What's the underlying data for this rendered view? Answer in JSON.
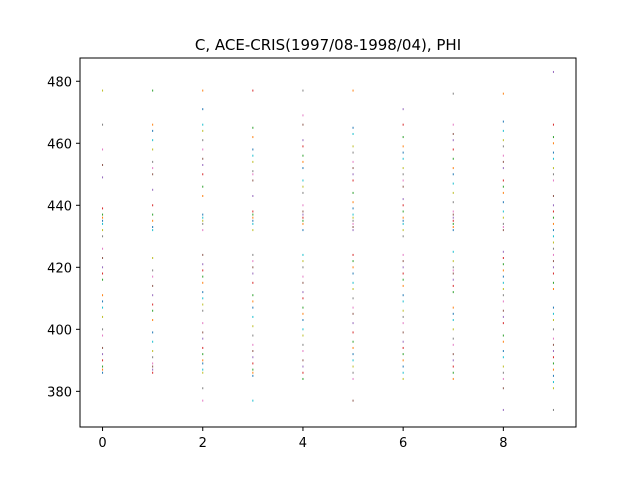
{
  "chart_data": {
    "type": "scatter",
    "title": "C, ACE-CRIS(1997/08-1998/04), PHI",
    "xlabel": "",
    "ylabel": "",
    "xlim": [
      -0.45,
      9.45
    ],
    "ylim": [
      368.5,
      487.5
    ],
    "xticks": [
      0,
      2,
      4,
      6,
      8
    ],
    "yticks": [
      380,
      400,
      420,
      440,
      460,
      480
    ],
    "grid": false,
    "point_colors": [
      "#1f77b4",
      "#ff7f0e",
      "#2ca02c",
      "#d62728",
      "#9467bd",
      "#8c564b",
      "#e377c2",
      "#7f7f7f",
      "#bcbd22",
      "#17becf"
    ],
    "points": [
      {
        "x": 0,
        "ys": [
          386,
          387,
          388,
          390,
          392,
          394,
          398,
          400,
          404,
          407,
          409,
          411,
          416,
          418,
          420,
          423,
          426,
          430,
          432,
          434,
          435,
          436,
          437,
          439,
          449,
          453,
          458,
          466,
          477
        ]
      },
      {
        "x": 1,
        "ys": [
          386,
          387,
          388,
          389,
          391,
          393,
          396,
          399,
          403,
          406,
          408,
          411,
          414,
          417,
          419,
          423,
          432,
          433,
          435,
          437,
          440,
          445,
          450,
          452,
          454,
          458,
          461,
          464,
          466,
          477
        ]
      },
      {
        "x": 2,
        "ys": [
          377,
          381,
          386,
          387,
          389,
          390,
          392,
          394,
          397,
          399,
          402,
          406,
          408,
          410,
          412,
          415,
          417,
          419,
          421,
          424,
          432,
          434,
          435,
          436,
          437,
          443,
          446,
          450,
          453,
          455,
          458,
          461,
          464,
          466,
          471,
          477
        ]
      },
      {
        "x": 3,
        "ys": [
          377,
          385,
          386,
          387,
          389,
          391,
          393,
          395,
          398,
          401,
          404,
          407,
          409,
          411,
          415,
          418,
          420,
          422,
          424,
          432,
          434,
          435,
          436,
          437,
          438,
          443,
          448,
          450,
          451,
          454,
          456,
          458,
          462,
          465,
          477
        ]
      },
      {
        "x": 4,
        "ys": [
          384,
          386,
          388,
          390,
          393,
          395,
          398,
          400,
          403,
          405,
          407,
          410,
          412,
          415,
          417,
          420,
          422,
          424,
          432,
          434,
          435,
          436,
          437,
          438,
          440,
          444,
          446,
          448,
          452,
          454,
          456,
          459,
          461,
          466,
          469,
          477
        ]
      },
      {
        "x": 5,
        "ys": [
          377,
          384,
          386,
          388,
          390,
          392,
          394,
          396,
          399,
          402,
          405,
          407,
          410,
          413,
          415,
          418,
          420,
          422,
          424,
          432,
          433,
          434,
          435,
          436,
          437,
          439,
          441,
          444,
          448,
          450,
          452,
          454,
          457,
          459,
          463,
          465,
          477
        ]
      },
      {
        "x": 6,
        "ys": [
          384,
          386,
          388,
          390,
          392,
          394,
          396,
          399,
          402,
          404,
          406,
          409,
          411,
          414,
          416,
          418,
          420,
          422,
          424,
          430,
          432,
          434,
          435,
          436,
          438,
          440,
          442,
          446,
          448,
          450,
          452,
          455,
          457,
          459,
          462,
          466,
          471
        ]
      },
      {
        "x": 7,
        "ys": [
          384,
          386,
          388,
          390,
          392,
          395,
          397,
          400,
          403,
          405,
          407,
          412,
          414,
          416,
          418,
          419,
          420,
          422,
          425,
          432,
          433,
          434,
          435,
          436,
          437,
          438,
          441,
          444,
          447,
          450,
          452,
          455,
          458,
          461,
          463,
          466,
          476
        ]
      },
      {
        "x": 8,
        "ys": [
          374,
          381,
          384,
          386,
          388,
          391,
          393,
          396,
          398,
          402,
          404,
          406,
          409,
          411,
          413,
          415,
          417,
          419,
          421,
          423,
          425,
          432,
          433,
          434,
          436,
          438,
          441,
          444,
          446,
          448,
          452,
          454,
          456,
          459,
          461,
          464,
          467,
          476
        ]
      },
      {
        "x": 9,
        "ys": [
          374,
          381,
          383,
          385,
          387,
          389,
          391,
          393,
          395,
          397,
          400,
          403,
          405,
          407,
          413,
          415,
          418,
          420,
          422,
          424,
          426,
          428,
          430,
          432,
          434,
          436,
          438,
          440,
          443,
          448,
          450,
          452,
          455,
          457,
          460,
          462,
          466,
          483
        ]
      }
    ]
  }
}
